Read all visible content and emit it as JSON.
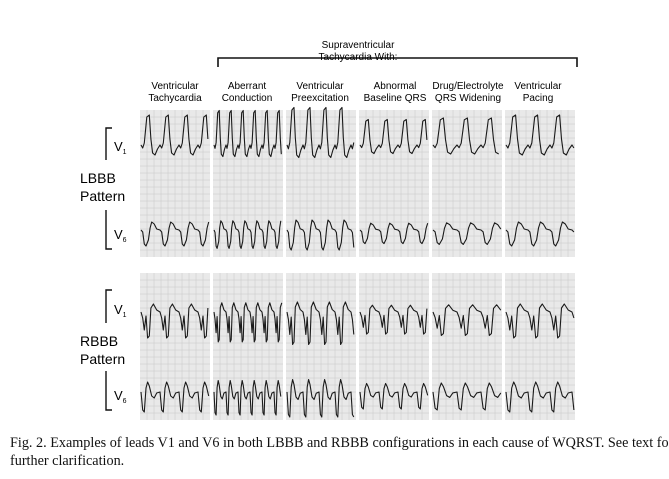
{
  "figure": {
    "supra_header": [
      "Supraventricular",
      "Tachycardia With:"
    ],
    "columns": [
      {
        "label": [
          "Ventricular",
          "Tachycardia"
        ],
        "pattern": "vt"
      },
      {
        "label": [
          "Aberrant",
          "Conduction"
        ],
        "pattern": "aberrant"
      },
      {
        "label": [
          "Ventricular",
          "Preexcitation"
        ],
        "pattern": "preex"
      },
      {
        "label": [
          "Abnormal",
          "Baseline QRS"
        ],
        "pattern": "abnormal"
      },
      {
        "label": [
          "Drug/Electrolyte",
          "QRS Widening"
        ],
        "pattern": "drug"
      },
      {
        "label": [
          "Ventricular",
          "Pacing"
        ],
        "pattern": "paced"
      }
    ],
    "row_groups": [
      {
        "label": [
          "LBBB",
          "Pattern"
        ],
        "key": "lbbb"
      },
      {
        "label": [
          "RBBB",
          "Pattern"
        ],
        "key": "rbbb"
      }
    ],
    "lead_labels": [
      "V",
      "V"
    ],
    "lead_subscripts": [
      "1",
      "6"
    ]
  },
  "caption": {
    "line1": "Fig. 2. Examples of leads V1 and V6 in both LBBB and RBBB configurations in each cause of WQRST. See text fo",
    "line2": "further clarification."
  },
  "colors": {
    "strip": "#e9e9e9",
    "trace": "#1a1a1a",
    "grid": "#c8c8c8"
  }
}
